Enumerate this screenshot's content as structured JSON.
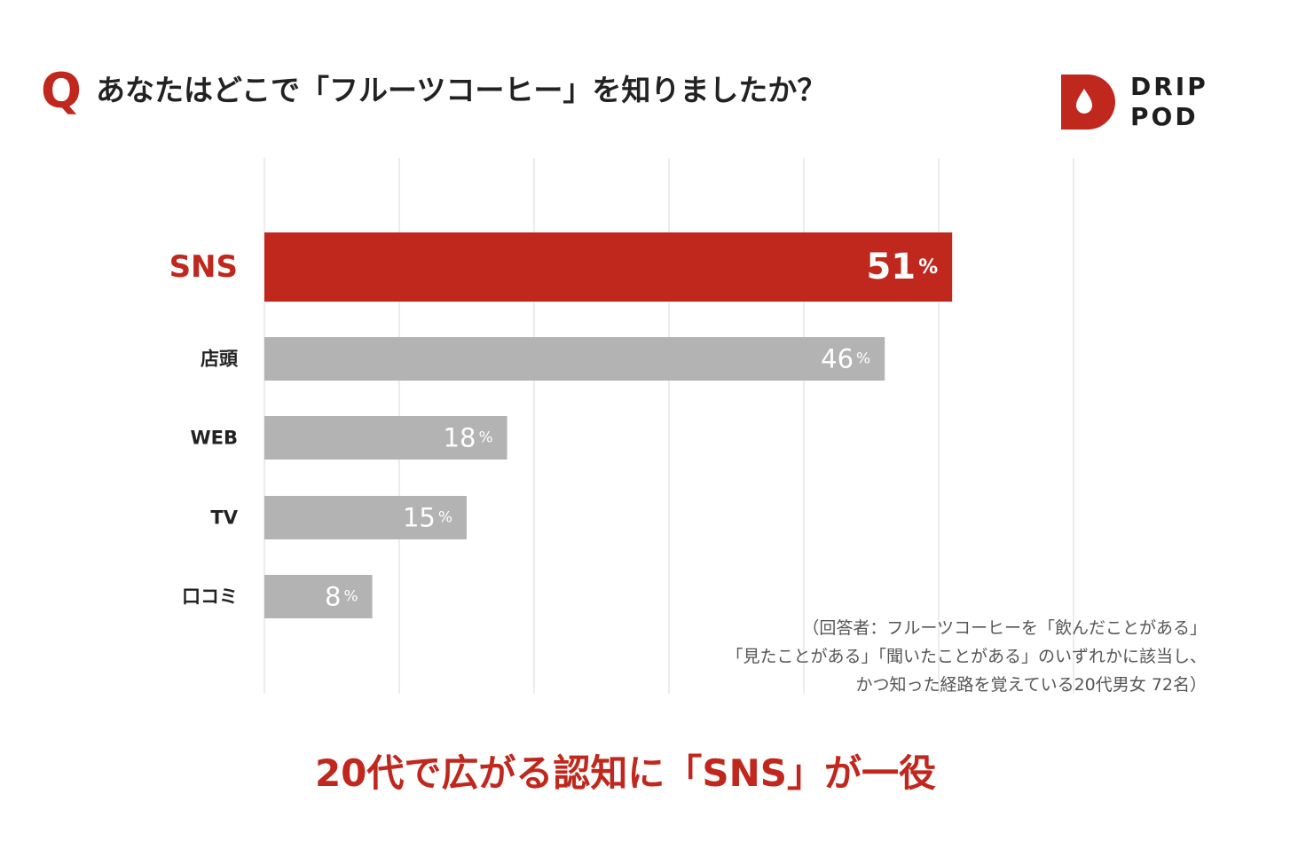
{
  "header": {
    "q_mark": "Q",
    "question": "あなたはどこで「フルーツコーヒー」を知りましたか？"
  },
  "logo": {
    "line1": "DRIP",
    "line2": "POD"
  },
  "chart_data": {
    "type": "bar",
    "orientation": "horizontal",
    "categories": [
      "SNS",
      "店頭",
      "WEB",
      "TV",
      "口コミ"
    ],
    "values": [
      51,
      46,
      18,
      15,
      8
    ],
    "labels": [
      "51%",
      "46%",
      "18%",
      "15%",
      "8%"
    ],
    "xlim": [
      0,
      60
    ],
    "grid": true,
    "highlight_index": 0,
    "colors": {
      "highlight": "#c0271d",
      "default": "#b3b3b3",
      "grid": "#e6e6e6"
    }
  },
  "note": [
    "（回答者：フルーツコーヒーを「飲んだことがある」",
    "「見たことがある」「聞いたことがある」のいずれかに該当し、",
    "かつ知った経路を覚えている20代男女 72名）"
  ],
  "headline": "20代で広がる認知に「SNS」が一役"
}
